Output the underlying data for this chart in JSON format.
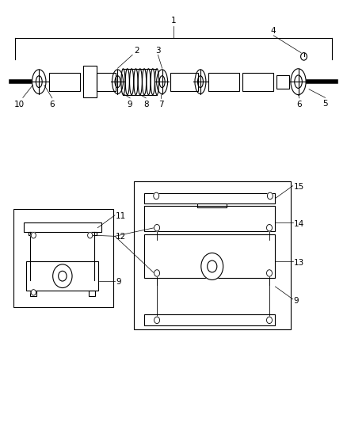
{
  "bg_color": "#ffffff",
  "line_color": "#000000",
  "label_color": "#000000",
  "fig_width": 4.38,
  "fig_height": 5.33,
  "dpi": 100
}
